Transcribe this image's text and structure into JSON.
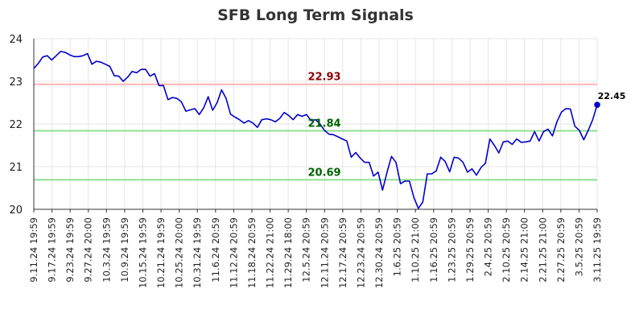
{
  "chart_data": {
    "type": "line",
    "title": "SFB Long Term Signals",
    "xlabel": "",
    "ylabel": "",
    "ylim": [
      20,
      24
    ],
    "yticks": [
      "20",
      "21",
      "22",
      "23",
      "24"
    ],
    "x_tick_labels": [
      "9.11.24 19:59",
      "9.17.24 19:59",
      "9.23.24 19:59",
      "9.27.24 20:00",
      "10.3.24 19:59",
      "10.9.24 19:59",
      "10.15.24 19:59",
      "10.21.24 19:59",
      "10.25.24 20:00",
      "10.31.24 19:59",
      "11.6.24 20:59",
      "11.12.24 20:59",
      "11.18.24 20:59",
      "11.22.24 21:00",
      "11.29.24 18:00",
      "12.5.24 20:59",
      "12.11.24 20:59",
      "12.17.24 20:59",
      "12.23.24 20:59",
      "12.30.24 20:59",
      "1.6.25 20:59",
      "1.10.25 21:00",
      "1.16.25 20:59",
      "1.23.25 20:59",
      "1.29.25 20:59",
      "2.4.25 20:59",
      "2.10.25 20:59",
      "2.14.25 21:00",
      "2.21.25 21:00",
      "2.27.25 20:59",
      "3.5.25 20:59",
      "3.11.25 19:59"
    ],
    "grid": true,
    "line_color": "#0000cc",
    "values": [
      23.3,
      23.42,
      23.57,
      23.6,
      23.5,
      23.6,
      23.7,
      23.68,
      23.62,
      23.58,
      23.58,
      23.6,
      23.65,
      23.4,
      23.47,
      23.45,
      23.4,
      23.35,
      23.13,
      23.12,
      23.0,
      23.1,
      23.23,
      23.2,
      23.28,
      23.28,
      23.12,
      23.18,
      22.9,
      22.9,
      22.57,
      22.62,
      22.6,
      22.52,
      22.3,
      22.33,
      22.36,
      22.22,
      22.38,
      22.64,
      22.32,
      22.5,
      22.8,
      22.6,
      22.23,
      22.16,
      22.1,
      22.02,
      22.08,
      22.02,
      21.92,
      22.1,
      22.12,
      22.1,
      22.05,
      22.13,
      22.27,
      22.2,
      22.1,
      22.22,
      22.18,
      22.22,
      22.08,
      22.1,
      22.0,
      21.85,
      21.76,
      21.75,
      21.7,
      21.65,
      21.6,
      21.22,
      21.33,
      21.2,
      21.1,
      21.1,
      20.78,
      20.87,
      20.45,
      20.87,
      21.24,
      21.1,
      20.6,
      20.66,
      20.66,
      20.28,
      20.02,
      20.17,
      20.83,
      20.83,
      20.9,
      21.22,
      21.12,
      20.88,
      21.22,
      21.2,
      21.1,
      20.87,
      20.95,
      20.8,
      20.98,
      21.08,
      21.65,
      21.5,
      21.32,
      21.58,
      21.6,
      21.52,
      21.65,
      21.57,
      21.58,
      21.6,
      21.82,
      21.6,
      21.82,
      21.88,
      21.72,
      22.05,
      22.28,
      22.36,
      22.35,
      21.95,
      21.85,
      21.63,
      21.85,
      22.1,
      22.45
    ],
    "reference_lines": [
      {
        "value": 22.93,
        "label": "22.93",
        "color": "#ffb3b3",
        "label_color": "#8b0000"
      },
      {
        "value": 21.84,
        "label": "21.84",
        "color": "#8fdf8f",
        "label_color": "#006400"
      },
      {
        "value": 20.69,
        "label": "20.69",
        "color": "#8fdf8f",
        "label_color": "#006400"
      }
    ],
    "last_value_label": "22.45"
  }
}
